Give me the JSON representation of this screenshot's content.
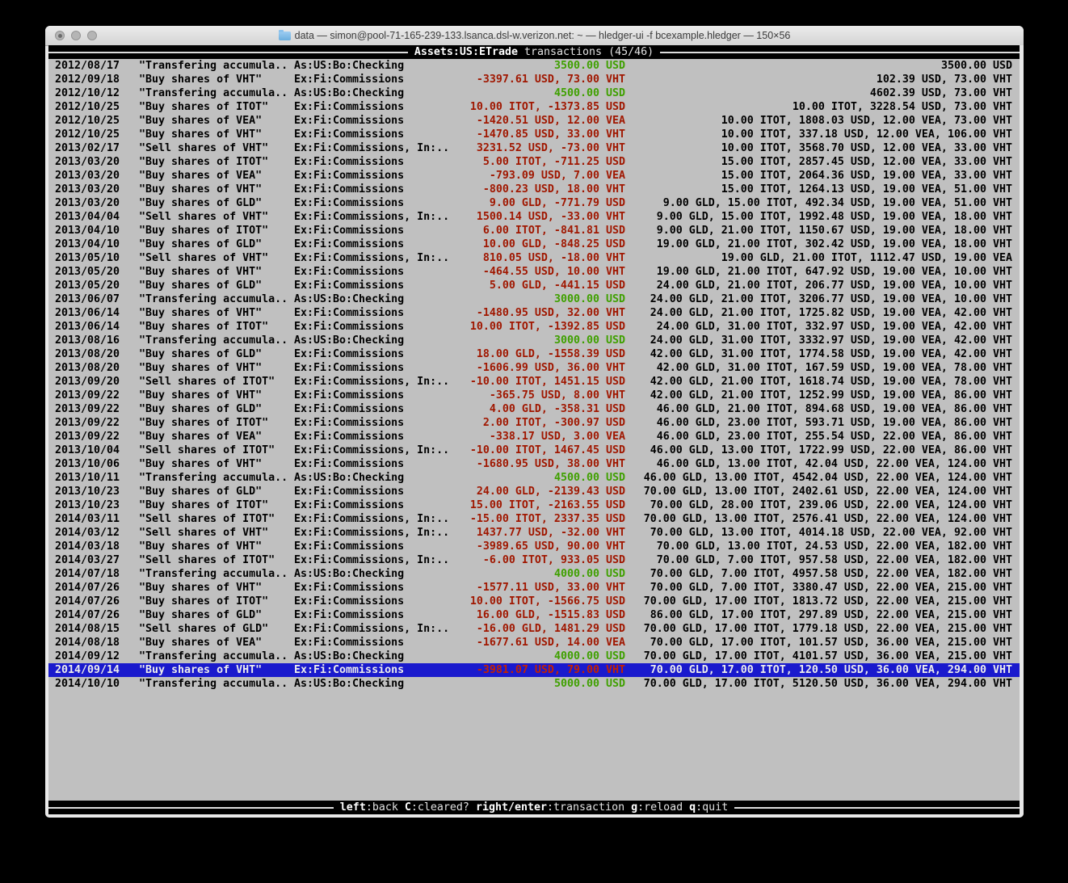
{
  "window": {
    "title": "data — simon@pool-71-165-239-133.lsanca.dsl-w.verizon.net: ~ — hledger-ui -f bcexample.hledger — 150×56",
    "controls": [
      "close",
      "minimize",
      "zoom"
    ]
  },
  "screen": {
    "header": {
      "account": "Assets:US:ETrade",
      "subtitle": "transactions (45/46)"
    },
    "footer_hints": [
      {
        "key": "left",
        "action": "back"
      },
      {
        "key": "C",
        "action": "cleared?"
      },
      {
        "key": "right/enter",
        "action": "transaction"
      },
      {
        "key": "g",
        "action": "reload"
      },
      {
        "key": "q",
        "action": "quit"
      }
    ]
  },
  "colors": {
    "terminal_background": "#c0c0c0",
    "amount_positive": "#3fa000",
    "amount_negative": "#a01700",
    "selection_background": "#1a1acd"
  },
  "table": {
    "rows": [
      {
        "date": "2012/08/17",
        "description": "\"Transfering accumula..",
        "account": "As:US:Bo:Checking",
        "change": "3500.00 USD",
        "change_type": "pos",
        "balance": "3500.00 USD"
      },
      {
        "date": "2012/09/18",
        "description": "\"Buy shares of VHT\"",
        "account": "Ex:Fi:Commissions",
        "change": "-3397.61 USD, 73.00 VHT",
        "change_type": "neg",
        "balance": "102.39 USD, 73.00 VHT"
      },
      {
        "date": "2012/10/12",
        "description": "\"Transfering accumula..",
        "account": "As:US:Bo:Checking",
        "change": "4500.00 USD",
        "change_type": "pos",
        "balance": "4602.39 USD, 73.00 VHT"
      },
      {
        "date": "2012/10/25",
        "description": "\"Buy shares of ITOT\"",
        "account": "Ex:Fi:Commissions",
        "change": "10.00 ITOT, -1373.85 USD",
        "change_type": "neg",
        "balance": "10.00 ITOT, 3228.54 USD, 73.00 VHT"
      },
      {
        "date": "2012/10/25",
        "description": "\"Buy shares of VEA\"",
        "account": "Ex:Fi:Commissions",
        "change": "-1420.51 USD, 12.00 VEA",
        "change_type": "neg",
        "balance": "10.00 ITOT, 1808.03 USD, 12.00 VEA, 73.00 VHT"
      },
      {
        "date": "2012/10/25",
        "description": "\"Buy shares of VHT\"",
        "account": "Ex:Fi:Commissions",
        "change": "-1470.85 USD, 33.00 VHT",
        "change_type": "neg",
        "balance": "10.00 ITOT, 337.18 USD, 12.00 VEA, 106.00 VHT"
      },
      {
        "date": "2013/02/17",
        "description": "\"Sell shares of VHT\"",
        "account": "Ex:Fi:Commissions, In:..",
        "change": "3231.52 USD, -73.00 VHT",
        "change_type": "neg",
        "balance": "10.00 ITOT, 3568.70 USD, 12.00 VEA, 33.00 VHT"
      },
      {
        "date": "2013/03/20",
        "description": "\"Buy shares of ITOT\"",
        "account": "Ex:Fi:Commissions",
        "change": "5.00 ITOT, -711.25 USD",
        "change_type": "neg",
        "balance": "15.00 ITOT, 2857.45 USD, 12.00 VEA, 33.00 VHT"
      },
      {
        "date": "2013/03/20",
        "description": "\"Buy shares of VEA\"",
        "account": "Ex:Fi:Commissions",
        "change": "-793.09 USD, 7.00 VEA",
        "change_type": "neg",
        "balance": "15.00 ITOT, 2064.36 USD, 19.00 VEA, 33.00 VHT"
      },
      {
        "date": "2013/03/20",
        "description": "\"Buy shares of VHT\"",
        "account": "Ex:Fi:Commissions",
        "change": "-800.23 USD, 18.00 VHT",
        "change_type": "neg",
        "balance": "15.00 ITOT, 1264.13 USD, 19.00 VEA, 51.00 VHT"
      },
      {
        "date": "2013/03/20",
        "description": "\"Buy shares of GLD\"",
        "account": "Ex:Fi:Commissions",
        "change": "9.00 GLD, -771.79 USD",
        "change_type": "neg",
        "balance": "9.00 GLD, 15.00 ITOT, 492.34 USD, 19.00 VEA, 51.00 VHT"
      },
      {
        "date": "2013/04/04",
        "description": "\"Sell shares of VHT\"",
        "account": "Ex:Fi:Commissions, In:..",
        "change": "1500.14 USD, -33.00 VHT",
        "change_type": "neg",
        "balance": "9.00 GLD, 15.00 ITOT, 1992.48 USD, 19.00 VEA, 18.00 VHT"
      },
      {
        "date": "2013/04/10",
        "description": "\"Buy shares of ITOT\"",
        "account": "Ex:Fi:Commissions",
        "change": "6.00 ITOT, -841.81 USD",
        "change_type": "neg",
        "balance": "9.00 GLD, 21.00 ITOT, 1150.67 USD, 19.00 VEA, 18.00 VHT"
      },
      {
        "date": "2013/04/10",
        "description": "\"Buy shares of GLD\"",
        "account": "Ex:Fi:Commissions",
        "change": "10.00 GLD, -848.25 USD",
        "change_type": "neg",
        "balance": "19.00 GLD, 21.00 ITOT, 302.42 USD, 19.00 VEA, 18.00 VHT"
      },
      {
        "date": "2013/05/10",
        "description": "\"Sell shares of VHT\"",
        "account": "Ex:Fi:Commissions, In:..",
        "change": "810.05 USD, -18.00 VHT",
        "change_type": "neg",
        "balance": "19.00 GLD, 21.00 ITOT, 1112.47 USD, 19.00 VEA"
      },
      {
        "date": "2013/05/20",
        "description": "\"Buy shares of VHT\"",
        "account": "Ex:Fi:Commissions",
        "change": "-464.55 USD, 10.00 VHT",
        "change_type": "neg",
        "balance": "19.00 GLD, 21.00 ITOT, 647.92 USD, 19.00 VEA, 10.00 VHT"
      },
      {
        "date": "2013/05/20",
        "description": "\"Buy shares of GLD\"",
        "account": "Ex:Fi:Commissions",
        "change": "5.00 GLD, -441.15 USD",
        "change_type": "neg",
        "balance": "24.00 GLD, 21.00 ITOT, 206.77 USD, 19.00 VEA, 10.00 VHT"
      },
      {
        "date": "2013/06/07",
        "description": "\"Transfering accumula..",
        "account": "As:US:Bo:Checking",
        "change": "3000.00 USD",
        "change_type": "pos",
        "balance": "24.00 GLD, 21.00 ITOT, 3206.77 USD, 19.00 VEA, 10.00 VHT"
      },
      {
        "date": "2013/06/14",
        "description": "\"Buy shares of VHT\"",
        "account": "Ex:Fi:Commissions",
        "change": "-1480.95 USD, 32.00 VHT",
        "change_type": "neg",
        "balance": "24.00 GLD, 21.00 ITOT, 1725.82 USD, 19.00 VEA, 42.00 VHT"
      },
      {
        "date": "2013/06/14",
        "description": "\"Buy shares of ITOT\"",
        "account": "Ex:Fi:Commissions",
        "change": "10.00 ITOT, -1392.85 USD",
        "change_type": "neg",
        "balance": "24.00 GLD, 31.00 ITOT, 332.97 USD, 19.00 VEA, 42.00 VHT"
      },
      {
        "date": "2013/08/16",
        "description": "\"Transfering accumula..",
        "account": "As:US:Bo:Checking",
        "change": "3000.00 USD",
        "change_type": "pos",
        "balance": "24.00 GLD, 31.00 ITOT, 3332.97 USD, 19.00 VEA, 42.00 VHT"
      },
      {
        "date": "2013/08/20",
        "description": "\"Buy shares of GLD\"",
        "account": "Ex:Fi:Commissions",
        "change": "18.00 GLD, -1558.39 USD",
        "change_type": "neg",
        "balance": "42.00 GLD, 31.00 ITOT, 1774.58 USD, 19.00 VEA, 42.00 VHT"
      },
      {
        "date": "2013/08/20",
        "description": "\"Buy shares of VHT\"",
        "account": "Ex:Fi:Commissions",
        "change": "-1606.99 USD, 36.00 VHT",
        "change_type": "neg",
        "balance": "42.00 GLD, 31.00 ITOT, 167.59 USD, 19.00 VEA, 78.00 VHT"
      },
      {
        "date": "2013/09/20",
        "description": "\"Sell shares of ITOT\"",
        "account": "Ex:Fi:Commissions, In:..",
        "change": "-10.00 ITOT, 1451.15 USD",
        "change_type": "neg",
        "balance": "42.00 GLD, 21.00 ITOT, 1618.74 USD, 19.00 VEA, 78.00 VHT"
      },
      {
        "date": "2013/09/22",
        "description": "\"Buy shares of VHT\"",
        "account": "Ex:Fi:Commissions",
        "change": "-365.75 USD, 8.00 VHT",
        "change_type": "neg",
        "balance": "42.00 GLD, 21.00 ITOT, 1252.99 USD, 19.00 VEA, 86.00 VHT"
      },
      {
        "date": "2013/09/22",
        "description": "\"Buy shares of GLD\"",
        "account": "Ex:Fi:Commissions",
        "change": "4.00 GLD, -358.31 USD",
        "change_type": "neg",
        "balance": "46.00 GLD, 21.00 ITOT, 894.68 USD, 19.00 VEA, 86.00 VHT"
      },
      {
        "date": "2013/09/22",
        "description": "\"Buy shares of ITOT\"",
        "account": "Ex:Fi:Commissions",
        "change": "2.00 ITOT, -300.97 USD",
        "change_type": "neg",
        "balance": "46.00 GLD, 23.00 ITOT, 593.71 USD, 19.00 VEA, 86.00 VHT"
      },
      {
        "date": "2013/09/22",
        "description": "\"Buy shares of VEA\"",
        "account": "Ex:Fi:Commissions",
        "change": "-338.17 USD, 3.00 VEA",
        "change_type": "neg",
        "balance": "46.00 GLD, 23.00 ITOT, 255.54 USD, 22.00 VEA, 86.00 VHT"
      },
      {
        "date": "2013/10/04",
        "description": "\"Sell shares of ITOT\"",
        "account": "Ex:Fi:Commissions, In:..",
        "change": "-10.00 ITOT, 1467.45 USD",
        "change_type": "neg",
        "balance": "46.00 GLD, 13.00 ITOT, 1722.99 USD, 22.00 VEA, 86.00 VHT"
      },
      {
        "date": "2013/10/06",
        "description": "\"Buy shares of VHT\"",
        "account": "Ex:Fi:Commissions",
        "change": "-1680.95 USD, 38.00 VHT",
        "change_type": "neg",
        "balance": "46.00 GLD, 13.00 ITOT, 42.04 USD, 22.00 VEA, 124.00 VHT"
      },
      {
        "date": "2013/10/11",
        "description": "\"Transfering accumula..",
        "account": "As:US:Bo:Checking",
        "change": "4500.00 USD",
        "change_type": "pos",
        "balance": "46.00 GLD, 13.00 ITOT, 4542.04 USD, 22.00 VEA, 124.00 VHT"
      },
      {
        "date": "2013/10/23",
        "description": "\"Buy shares of GLD\"",
        "account": "Ex:Fi:Commissions",
        "change": "24.00 GLD, -2139.43 USD",
        "change_type": "neg",
        "balance": "70.00 GLD, 13.00 ITOT, 2402.61 USD, 22.00 VEA, 124.00 VHT"
      },
      {
        "date": "2013/10/23",
        "description": "\"Buy shares of ITOT\"",
        "account": "Ex:Fi:Commissions",
        "change": "15.00 ITOT, -2163.55 USD",
        "change_type": "neg",
        "balance": "70.00 GLD, 28.00 ITOT, 239.06 USD, 22.00 VEA, 124.00 VHT"
      },
      {
        "date": "2014/03/11",
        "description": "\"Sell shares of ITOT\"",
        "account": "Ex:Fi:Commissions, In:..",
        "change": "-15.00 ITOT, 2337.35 USD",
        "change_type": "neg",
        "balance": "70.00 GLD, 13.00 ITOT, 2576.41 USD, 22.00 VEA, 124.00 VHT"
      },
      {
        "date": "2014/03/12",
        "description": "\"Sell shares of VHT\"",
        "account": "Ex:Fi:Commissions, In:..",
        "change": "1437.77 USD, -32.00 VHT",
        "change_type": "neg",
        "balance": "70.00 GLD, 13.00 ITOT, 4014.18 USD, 22.00 VEA, 92.00 VHT"
      },
      {
        "date": "2014/03/18",
        "description": "\"Buy shares of VHT\"",
        "account": "Ex:Fi:Commissions",
        "change": "-3989.65 USD, 90.00 VHT",
        "change_type": "neg",
        "balance": "70.00 GLD, 13.00 ITOT, 24.53 USD, 22.00 VEA, 182.00 VHT"
      },
      {
        "date": "2014/03/27",
        "description": "\"Sell shares of ITOT\"",
        "account": "Ex:Fi:Commissions, In:..",
        "change": "-6.00 ITOT, 933.05 USD",
        "change_type": "neg",
        "balance": "70.00 GLD, 7.00 ITOT, 957.58 USD, 22.00 VEA, 182.00 VHT"
      },
      {
        "date": "2014/07/18",
        "description": "\"Transfering accumula..",
        "account": "As:US:Bo:Checking",
        "change": "4000.00 USD",
        "change_type": "pos",
        "balance": "70.00 GLD, 7.00 ITOT, 4957.58 USD, 22.00 VEA, 182.00 VHT"
      },
      {
        "date": "2014/07/26",
        "description": "\"Buy shares of VHT\"",
        "account": "Ex:Fi:Commissions",
        "change": "-1577.11 USD, 33.00 VHT",
        "change_type": "neg",
        "balance": "70.00 GLD, 7.00 ITOT, 3380.47 USD, 22.00 VEA, 215.00 VHT"
      },
      {
        "date": "2014/07/26",
        "description": "\"Buy shares of ITOT\"",
        "account": "Ex:Fi:Commissions",
        "change": "10.00 ITOT, -1566.75 USD",
        "change_type": "neg",
        "balance": "70.00 GLD, 17.00 ITOT, 1813.72 USD, 22.00 VEA, 215.00 VHT"
      },
      {
        "date": "2014/07/26",
        "description": "\"Buy shares of GLD\"",
        "account": "Ex:Fi:Commissions",
        "change": "16.00 GLD, -1515.83 USD",
        "change_type": "neg",
        "balance": "86.00 GLD, 17.00 ITOT, 297.89 USD, 22.00 VEA, 215.00 VHT"
      },
      {
        "date": "2014/08/15",
        "description": "\"Sell shares of GLD\"",
        "account": "Ex:Fi:Commissions, In:..",
        "change": "-16.00 GLD, 1481.29 USD",
        "change_type": "neg",
        "balance": "70.00 GLD, 17.00 ITOT, 1779.18 USD, 22.00 VEA, 215.00 VHT"
      },
      {
        "date": "2014/08/18",
        "description": "\"Buy shares of VEA\"",
        "account": "Ex:Fi:Commissions",
        "change": "-1677.61 USD, 14.00 VEA",
        "change_type": "neg",
        "balance": "70.00 GLD, 17.00 ITOT, 101.57 USD, 36.00 VEA, 215.00 VHT"
      },
      {
        "date": "2014/09/12",
        "description": "\"Transfering accumula..",
        "account": "As:US:Bo:Checking",
        "change": "4000.00 USD",
        "change_type": "pos",
        "balance": "70.00 GLD, 17.00 ITOT, 4101.57 USD, 36.00 VEA, 215.00 VHT"
      },
      {
        "date": "2014/09/14",
        "description": "\"Buy shares of VHT\"",
        "account": "Ex:Fi:Commissions",
        "change": "-3981.07 USD, 79.00 VHT",
        "change_type": "neg",
        "balance": "70.00 GLD, 17.00 ITOT, 120.50 USD, 36.00 VEA, 294.00 VHT",
        "selected": true
      },
      {
        "date": "2014/10/10",
        "description": "\"Transfering accumula..",
        "account": "As:US:Bo:Checking",
        "change": "5000.00 USD",
        "change_type": "pos",
        "balance": "70.00 GLD, 17.00 ITOT, 5120.50 USD, 36.00 VEA, 294.00 VHT"
      }
    ]
  }
}
